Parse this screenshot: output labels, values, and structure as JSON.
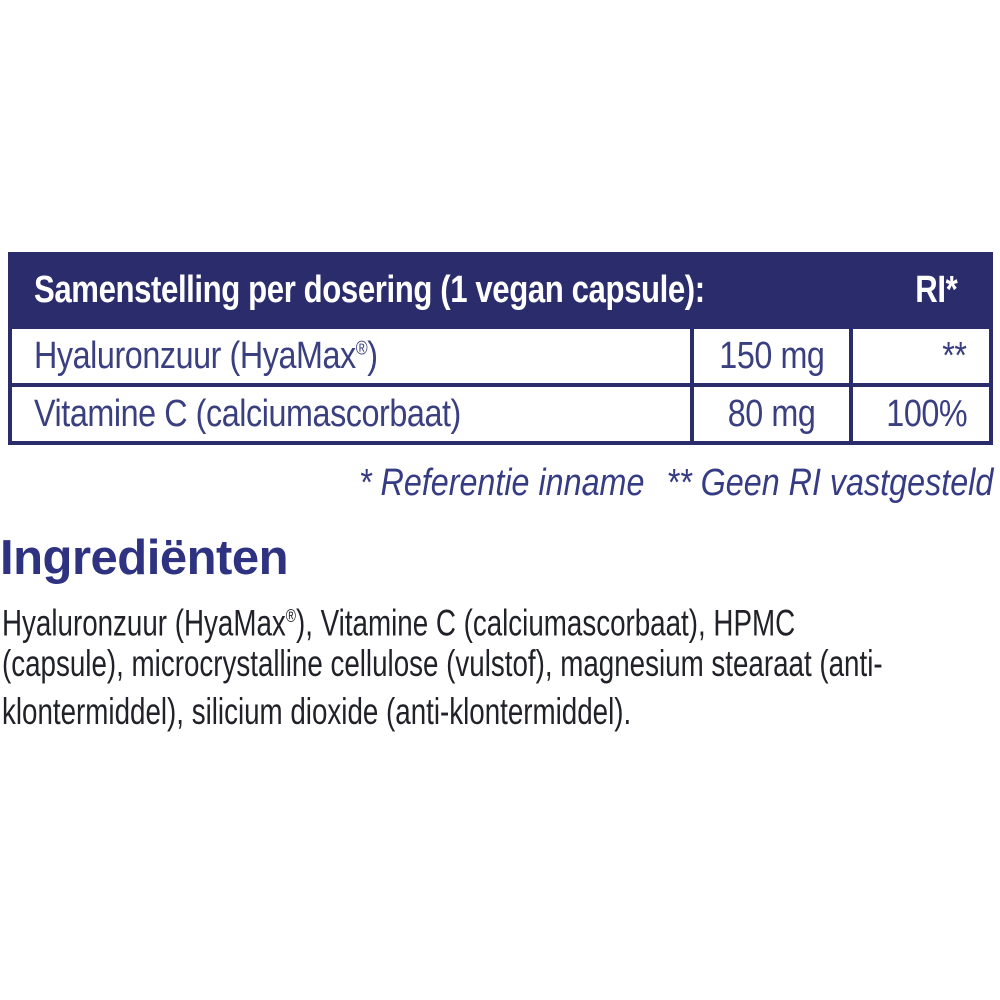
{
  "colors": {
    "navy_header_bg": "#2b2c6c",
    "table_border": "#2b2c6c",
    "table_text": "#3a3f80",
    "footnote_text": "#363c83",
    "heading_text": "#2e3280",
    "paragraph_text": "#212229",
    "header_text": "#ffffff",
    "background": "#ffffff"
  },
  "table": {
    "header": {
      "title": "Samenstelling per dosering (1 vegan capsule):",
      "ri_label": "RI*"
    },
    "rows": [
      {
        "name_pre": "Hyaluronzuur (HyaMax",
        "name_sup": "®",
        "name_post": ")",
        "amount": "150 mg",
        "ri": "**"
      },
      {
        "name_pre": "Vitamine C (calciumascorbaat)",
        "name_sup": "",
        "name_post": "",
        "amount": "80 mg",
        "ri": "100%"
      }
    ]
  },
  "footnote": {
    "part1": "* Referentie inname",
    "part2": "** Geen RI vastgesteld"
  },
  "ingredients": {
    "heading": "Ingrediënten",
    "line1_pre": "Hyaluronzuur (HyaMax",
    "line1_sup": "®",
    "line1_post": "), Vitamine C (calciumascorbaat), HPMC",
    "line2": "(capsule), microcrystalline cellulose (vulstof), magnesium stearaat (anti-",
    "line3": "klontermiddel), silicium dioxide (anti-klontermiddel)."
  }
}
